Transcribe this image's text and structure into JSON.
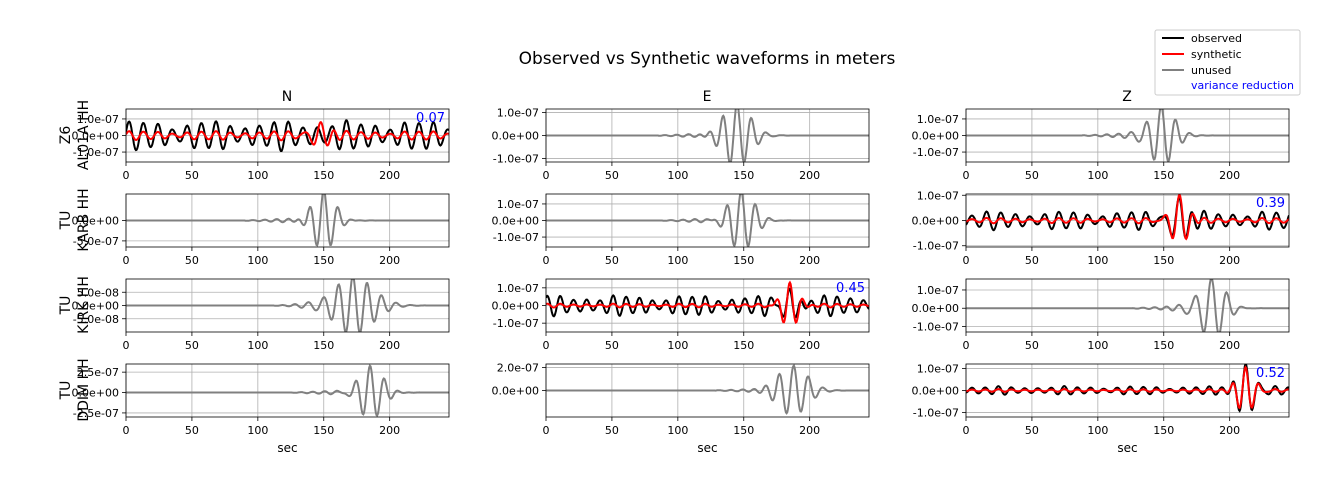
{
  "figure": {
    "title": "Observed vs Synthetic waveforms in meters",
    "xlabel": "sec",
    "legend": {
      "placement": "top-right",
      "entries": [
        {
          "label": "observed",
          "color": "#000000"
        },
        {
          "label": "synthetic",
          "color": "#ff0000"
        },
        {
          "label": "unused",
          "color": "#808080"
        },
        {
          "label": "variance reduction",
          "color": "#0000ff"
        }
      ]
    },
    "columns": [
      "N",
      "E",
      "Z"
    ],
    "stations": [
      {
        "network": "Z6",
        "station": "AL01A HH"
      },
      {
        "network": "TU",
        "station": "KARB HH"
      },
      {
        "network": "TU",
        "station": "KIRK HH"
      },
      {
        "network": "TU",
        "station": "DDIM HH"
      }
    ]
  },
  "chart_data": [
    {
      "type": "line",
      "row": 0,
      "col": 0,
      "title": "N",
      "used": true,
      "xlim": [
        0,
        245
      ],
      "ylim": [
        -1.6e-07,
        1.6e-07
      ],
      "yticks": [
        "1.0e-07",
        "0.0e+00",
        "-1.0e-07"
      ],
      "ytick_values": [
        1e-07,
        0,
        -1e-07
      ],
      "xticks": [
        "0",
        "50",
        "100",
        "150",
        "200"
      ],
      "xtick_values": [
        0,
        50,
        100,
        150,
        200
      ],
      "xlabel": "",
      "grid": true,
      "variance_reduction": "0.07",
      "observed": {
        "period": 11,
        "amplitude": 8.5e-08,
        "start": 0,
        "end": 245
      },
      "synthetic": {
        "period": 11,
        "amplitude": 2.6e-08,
        "center": 148,
        "peak_amplitude": 8e-08,
        "start": 0,
        "end": 245
      }
    },
    {
      "type": "line",
      "row": 0,
      "col": 1,
      "title": "E",
      "used": false,
      "xlim": [
        0,
        245
      ],
      "ylim": [
        -1.15e-07,
        1.15e-07
      ],
      "yticks": [
        "1.0e-07",
        "0.0e+00",
        "-1.0e-07"
      ],
      "ytick_values": [
        1e-07,
        0,
        -1e-07
      ],
      "xticks": [
        "0",
        "50",
        "100",
        "150",
        "200"
      ],
      "xtick_values": [
        0,
        50,
        100,
        150,
        200
      ],
      "xlabel": "",
      "grid": true,
      "unused": {
        "center": 145,
        "amplitude": 1.3e-07,
        "period": 11,
        "width": 15
      }
    },
    {
      "type": "line",
      "row": 0,
      "col": 2,
      "title": "Z",
      "used": false,
      "xlim": [
        0,
        245
      ],
      "ylim": [
        -1.6e-07,
        1.6e-07
      ],
      "yticks": [
        "1.0e-07",
        "0.0e+00",
        "-1.0e-07"
      ],
      "ytick_values": [
        1e-07,
        0,
        -1e-07
      ],
      "xticks": [
        "0",
        "50",
        "100",
        "150",
        "200"
      ],
      "xtick_values": [
        0,
        50,
        100,
        150,
        200
      ],
      "xlabel": "",
      "grid": true,
      "unused": {
        "center": 148,
        "amplitude": 1.9e-07,
        "period": 11,
        "width": 13
      }
    },
    {
      "type": "line",
      "row": 1,
      "col": 0,
      "title": "",
      "used": false,
      "xlim": [
        0,
        245
      ],
      "ylim": [
        -6.5e-07,
        6.5e-07
      ],
      "yticks": [
        "0.0e+00",
        "-5.0e-07"
      ],
      "ytick_values": [
        0,
        -5e-07
      ],
      "xticks": [
        "0",
        "50",
        "100",
        "150",
        "200"
      ],
      "xtick_values": [
        0,
        50,
        100,
        150,
        200
      ],
      "xlabel": "",
      "grid": true,
      "unused": {
        "center": 150,
        "amplitude": 7e-07,
        "period": 11,
        "width": 12
      }
    },
    {
      "type": "line",
      "row": 1,
      "col": 1,
      "title": "",
      "used": false,
      "xlim": [
        0,
        245
      ],
      "ylim": [
        -1.6e-07,
        1.6e-07
      ],
      "yticks": [
        "1.0e-07",
        "0.0e+00",
        "-1.0e-07"
      ],
      "ytick_values": [
        1e-07,
        0,
        -1e-07
      ],
      "xticks": [
        "0",
        "50",
        "100",
        "150",
        "200"
      ],
      "xtick_values": [
        0,
        50,
        100,
        150,
        200
      ],
      "xlabel": "",
      "grid": true,
      "unused": {
        "center": 148,
        "amplitude": 1.7e-07,
        "period": 11,
        "width": 14
      }
    },
    {
      "type": "line",
      "row": 1,
      "col": 2,
      "title": "",
      "used": true,
      "xlim": [
        0,
        245
      ],
      "ylim": [
        -1.05e-07,
        1.05e-07
      ],
      "yticks": [
        "1.0e-07",
        "0.0e+00",
        "-1.0e-07"
      ],
      "ytick_values": [
        1e-07,
        0,
        -1e-07
      ],
      "xticks": [
        "0",
        "50",
        "100",
        "150",
        "200"
      ],
      "xtick_values": [
        0,
        50,
        100,
        150,
        200
      ],
      "xlabel": "",
      "grid": true,
      "variance_reduction": "0.39",
      "observed": {
        "period": 11,
        "amplitude": 3.5e-08,
        "start": 0,
        "end": 245,
        "center": 162,
        "peak_amplitude": 1e-07
      },
      "synthetic": {
        "period": 11,
        "amplitude": 1e-08,
        "center": 162,
        "peak_amplitude": 1.05e-07,
        "start": 0,
        "end": 245
      }
    },
    {
      "type": "line",
      "row": 2,
      "col": 0,
      "title": "",
      "used": false,
      "xlim": [
        0,
        245
      ],
      "ylim": [
        -1e-07,
        1e-07
      ],
      "yticks": [
        "5.0e-08",
        "0.0e+00",
        "-5.0e-08"
      ],
      "ytick_values": [
        5e-08,
        0,
        -5e-08
      ],
      "xticks": [
        "0",
        "50",
        "100",
        "150",
        "200"
      ],
      "xtick_values": [
        0,
        50,
        100,
        150,
        200
      ],
      "xlabel": "",
      "grid": true,
      "unused": {
        "center": 172,
        "amplitude": 1.05e-07,
        "period": 11,
        "width": 22
      }
    },
    {
      "type": "line",
      "row": 2,
      "col": 1,
      "title": "",
      "used": true,
      "xlim": [
        0,
        245
      ],
      "ylim": [
        -1.5e-07,
        1.5e-07
      ],
      "yticks": [
        "1.0e-07",
        "0.0e+00",
        "-1.0e-07"
      ],
      "ytick_values": [
        1e-07,
        0,
        -1e-07
      ],
      "xticks": [
        "0",
        "50",
        "100",
        "150",
        "200"
      ],
      "xtick_values": [
        0,
        50,
        100,
        150,
        200
      ],
      "xlabel": "",
      "grid": true,
      "variance_reduction": "0.45",
      "observed": {
        "period": 10,
        "amplitude": 5.5e-08,
        "start": 0,
        "end": 245,
        "center": 185,
        "peak_amplitude": 1.2e-07
      },
      "synthetic": {
        "period": 10,
        "amplitude": 1e-08,
        "center": 185,
        "peak_amplitude": 1.35e-07,
        "start": 0,
        "end": 245
      }
    },
    {
      "type": "line",
      "row": 2,
      "col": 2,
      "title": "",
      "used": false,
      "xlim": [
        0,
        245
      ],
      "ylim": [
        -1.3e-07,
        1.6e-07
      ],
      "yticks": [
        "1.0e-07",
        "0.0e+00",
        "-1.0e-07"
      ],
      "ytick_values": [
        1e-07,
        0,
        -1e-07
      ],
      "xticks": [
        "0",
        "50",
        "100",
        "150",
        "200"
      ],
      "xtick_values": [
        0,
        50,
        100,
        150,
        200
      ],
      "xlabel": "",
      "grid": true,
      "unused": {
        "center": 186,
        "amplitude": 1.65e-07,
        "period": 12,
        "width": 14
      }
    },
    {
      "type": "line",
      "row": 3,
      "col": 0,
      "title": "",
      "used": false,
      "xlim": [
        0,
        245
      ],
      "ylim": [
        -3e-07,
        3.5e-07
      ],
      "yticks": [
        "2.5e-07",
        "0.0e+00",
        "-2.5e-07"
      ],
      "ytick_values": [
        2.5e-07,
        0,
        -2.5e-07
      ],
      "xticks": [
        "0",
        "50",
        "100",
        "150",
        "200"
      ],
      "xtick_values": [
        0,
        50,
        100,
        150,
        200
      ],
      "xlabel": "sec",
      "grid": true,
      "unused": {
        "center": 185,
        "amplitude": 3.2e-07,
        "period": 11,
        "width": 13
      }
    },
    {
      "type": "line",
      "row": 3,
      "col": 1,
      "title": "",
      "used": false,
      "xlim": [
        0,
        245
      ],
      "ylim": [
        -2.3e-07,
        2.3e-07
      ],
      "yticks": [
        "2.0e-07",
        "0.0e+00"
      ],
      "ytick_values": [
        2e-07,
        0
      ],
      "xticks": [
        "0",
        "50",
        "100",
        "150",
        "200"
      ],
      "xtick_values": [
        0,
        50,
        100,
        150,
        200
      ],
      "xlabel": "sec",
      "grid": true,
      "unused": {
        "center": 188,
        "amplitude": 2.2e-07,
        "period": 11,
        "width": 15
      }
    },
    {
      "type": "line",
      "row": 3,
      "col": 2,
      "title": "",
      "used": true,
      "xlim": [
        0,
        245
      ],
      "ylim": [
        -1.2e-07,
        1.2e-07
      ],
      "yticks": [
        "1.0e-07",
        "0.0e+00",
        "-1.0e-07"
      ],
      "ytick_values": [
        1e-07,
        0,
        -1e-07
      ],
      "xticks": [
        "0",
        "50",
        "100",
        "150",
        "200"
      ],
      "xtick_values": [
        0,
        50,
        100,
        150,
        200
      ],
      "xlabel": "sec",
      "grid": true,
      "variance_reduction": "0.52",
      "observed": {
        "period": 10,
        "amplitude": 1.8e-08,
        "start": 0,
        "end": 245,
        "center": 212,
        "peak_amplitude": 1.2e-07
      },
      "synthetic": {
        "period": 10,
        "amplitude": 6e-09,
        "center": 212,
        "peak_amplitude": 1.05e-07,
        "start": 0,
        "end": 245
      }
    }
  ]
}
